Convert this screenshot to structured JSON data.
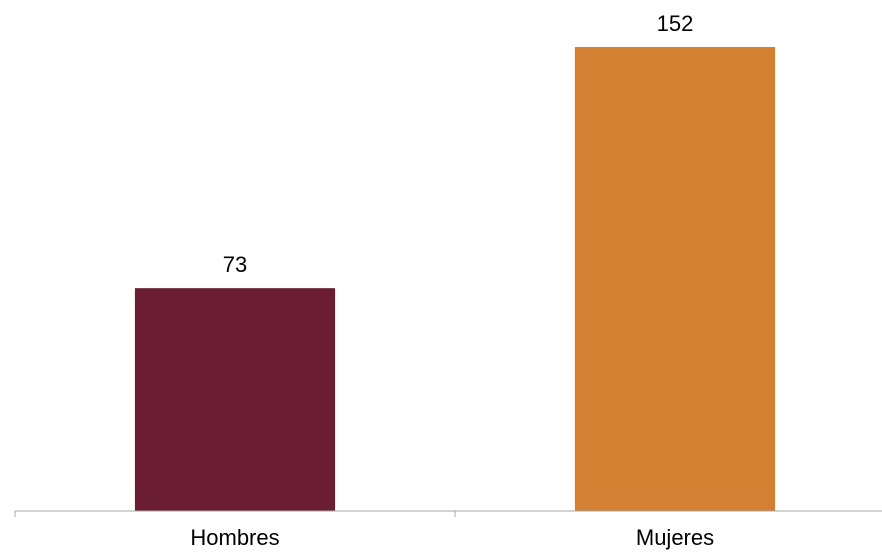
{
  "chart_data": {
    "type": "bar",
    "categories": [
      "Hombres",
      "Mujeres"
    ],
    "values": [
      73,
      152
    ],
    "colors": [
      "#6a1d33",
      "#d48033"
    ],
    "title": "",
    "xlabel": "",
    "ylabel": "",
    "ylim": [
      0,
      160
    ],
    "grid": false,
    "legend": "none",
    "data_labels": [
      "73",
      "152"
    ]
  }
}
